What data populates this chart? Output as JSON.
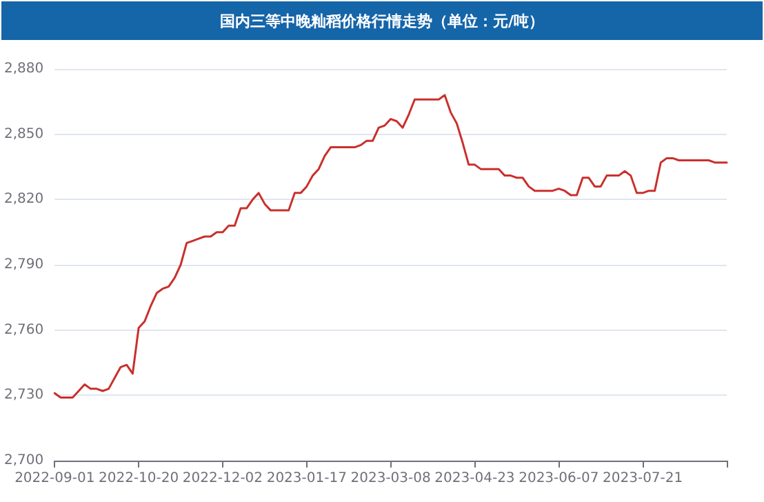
{
  "chart_data": {
    "type": "line",
    "title": "国内三等中晚籼稻价格行情走势（单位：元/吨）",
    "categories": [
      "2022-09-01",
      null,
      null,
      null,
      null,
      null,
      null,
      null,
      null,
      null,
      null,
      null,
      null,
      null,
      "2022-10-20",
      null,
      null,
      null,
      null,
      null,
      null,
      null,
      null,
      null,
      null,
      null,
      null,
      null,
      "2022-12-02",
      null,
      null,
      null,
      null,
      null,
      null,
      null,
      null,
      null,
      null,
      null,
      null,
      null,
      "2023-01-17",
      null,
      null,
      null,
      null,
      null,
      null,
      null,
      null,
      null,
      null,
      null,
      null,
      null,
      "2023-03-08",
      null,
      null,
      null,
      null,
      null,
      null,
      null,
      null,
      null,
      null,
      null,
      null,
      null,
      "2023-04-23",
      null,
      null,
      null,
      null,
      null,
      null,
      null,
      null,
      null,
      null,
      null,
      null,
      null,
      "2023-06-07",
      null,
      null,
      null,
      null,
      null,
      null,
      null,
      null,
      null,
      null,
      null,
      null,
      null,
      "2023-07-21",
      null,
      null,
      null,
      null,
      null,
      null,
      null,
      null,
      null,
      null,
      null,
      null,
      null,
      null
    ],
    "series": [
      {
        "color": "#c9302c",
        "values": [
          2731,
          2729,
          2729,
          2729,
          2732,
          2735,
          2733,
          2733,
          2732,
          2733,
          2738,
          2743,
          2744,
          2740,
          2761,
          2764,
          2771,
          2777,
          2779,
          2780,
          2784,
          2790,
          2800,
          2801,
          2802,
          2803,
          2803,
          2805,
          2805,
          2808,
          2808,
          2816,
          2816,
          2820,
          2823,
          2818,
          2815,
          2815,
          2815,
          2815,
          2823,
          2823,
          2826,
          2831,
          2834,
          2840,
          2844,
          2844,
          2844,
          2844,
          2844,
          2845,
          2847,
          2847,
          2853,
          2854,
          2857,
          2856,
          2853,
          2859,
          2866,
          2866,
          2866,
          2866,
          2866,
          2868,
          2860,
          2855,
          2846,
          2836,
          2836,
          2834,
          2834,
          2834,
          2834,
          2831,
          2831,
          2830,
          2830,
          2826,
          2824,
          2824,
          2824,
          2824,
          2825,
          2824,
          2822,
          2822,
          2830,
          2830,
          2826,
          2826,
          2831,
          2831,
          2831,
          2833,
          2831,
          2823,
          2823,
          2824,
          2824,
          2837,
          2839,
          2839,
          2838,
          2838,
          2838,
          2838,
          2838,
          2838,
          2837,
          2837,
          2837
        ]
      }
    ],
    "ylim": [
      2700,
      2880
    ],
    "yticks": [
      {
        "value": 2700,
        "label": "2,700"
      },
      {
        "value": 2730,
        "label": "2,730"
      },
      {
        "value": 2760,
        "label": "2,760"
      },
      {
        "value": 2790,
        "label": "2,790"
      },
      {
        "value": 2820,
        "label": "2,820"
      },
      {
        "value": 2850,
        "label": "2,850"
      },
      {
        "value": 2880,
        "label": "2,880"
      }
    ],
    "grid": "y",
    "line_style": "solid"
  }
}
